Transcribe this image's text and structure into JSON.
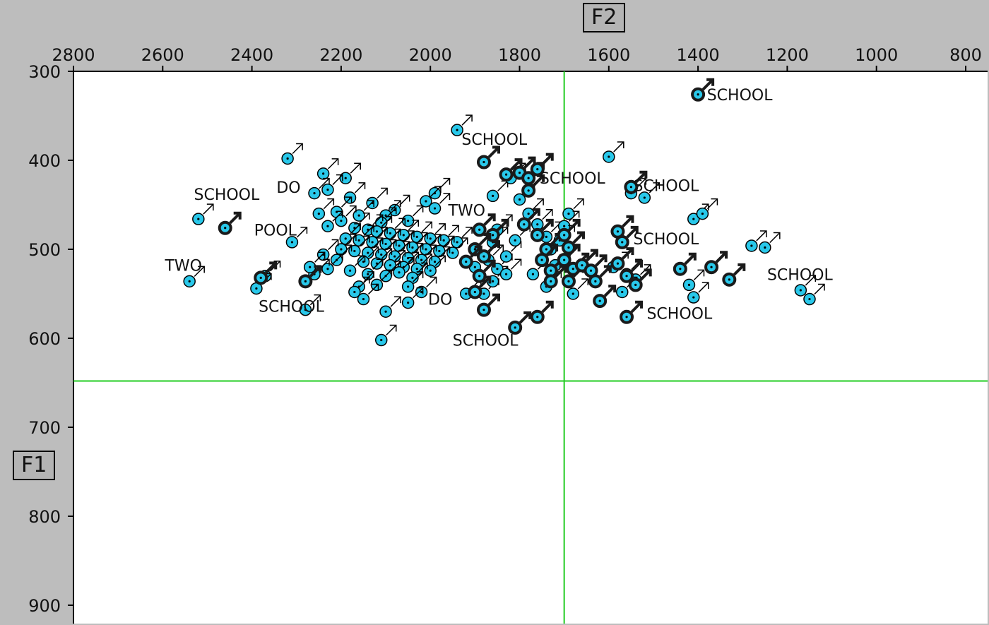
{
  "x_axis_label": "F2",
  "y_axis_label": "F1",
  "colors": {
    "background": "#bdbdbd",
    "plot_area": "#ffffff",
    "marker_light": "#29c8ea",
    "marker_dark": "#1a1a1a",
    "crosshair": "#22cc22"
  },
  "chart_data": {
    "type": "scatter",
    "x_axis": {
      "label": "F2",
      "ticks": [
        "2800",
        "2600",
        "2400",
        "2200",
        "2000",
        "1800",
        "1600",
        "1400",
        "1200",
        "1000",
        "800"
      ],
      "range": [
        2800,
        800
      ],
      "reversed": true,
      "position": "top"
    },
    "y_axis": {
      "label": "F1",
      "ticks": [
        "300",
        "400",
        "500",
        "600",
        "700",
        "800",
        "900"
      ],
      "range": [
        300,
        900
      ],
      "reversed": true,
      "position": "left"
    },
    "crosshair": {
      "x": 1700,
      "y": 648
    },
    "marker_symbol": "male-symbol",
    "series": [
      {
        "style": "light",
        "points": [
          [
            1940,
            366
          ],
          [
            2320,
            398
          ],
          [
            2240,
            415
          ],
          [
            2190,
            420
          ],
          [
            2230,
            433
          ],
          [
            2260,
            437
          ],
          [
            1860,
            440
          ],
          [
            1990,
            437
          ],
          [
            2180,
            442
          ],
          [
            2010,
            446
          ],
          [
            2130,
            448
          ],
          [
            1990,
            454
          ],
          [
            2210,
            458
          ],
          [
            2250,
            460
          ],
          [
            2160,
            462
          ],
          [
            2080,
            456
          ],
          [
            2100,
            462
          ],
          [
            2050,
            468
          ],
          [
            2110,
            470
          ],
          [
            2200,
            468
          ],
          [
            2230,
            474
          ],
          [
            2170,
            476
          ],
          [
            2140,
            478
          ],
          [
            2120,
            480
          ],
          [
            2090,
            482
          ],
          [
            2060,
            484
          ],
          [
            2030,
            486
          ],
          [
            2000,
            488
          ],
          [
            1970,
            490
          ],
          [
            1940,
            492
          ],
          [
            2190,
            488
          ],
          [
            2160,
            490
          ],
          [
            2130,
            492
          ],
          [
            2100,
            494
          ],
          [
            2070,
            496
          ],
          [
            2040,
            498
          ],
          [
            2010,
            500
          ],
          [
            1980,
            502
          ],
          [
            1950,
            504
          ],
          [
            2200,
            500
          ],
          [
            2170,
            502
          ],
          [
            2140,
            504
          ],
          [
            2110,
            506
          ],
          [
            2080,
            508
          ],
          [
            2050,
            510
          ],
          [
            2020,
            512
          ],
          [
            1990,
            514
          ],
          [
            2150,
            514
          ],
          [
            2120,
            516
          ],
          [
            2090,
            518
          ],
          [
            2060,
            520
          ],
          [
            2030,
            522
          ],
          [
            2000,
            524
          ],
          [
            2180,
            524
          ],
          [
            2210,
            512
          ],
          [
            2240,
            506
          ],
          [
            2230,
            522
          ],
          [
            2260,
            528
          ],
          [
            2270,
            520
          ],
          [
            2140,
            528
          ],
          [
            2100,
            530
          ],
          [
            2070,
            526
          ],
          [
            2040,
            532
          ],
          [
            2120,
            540
          ],
          [
            2160,
            542
          ],
          [
            2170,
            548
          ],
          [
            2150,
            556
          ],
          [
            2050,
            542
          ],
          [
            2020,
            548
          ],
          [
            2050,
            560
          ],
          [
            2100,
            570
          ],
          [
            2110,
            602
          ],
          [
            2280,
            568
          ],
          [
            2370,
            530
          ],
          [
            2390,
            544
          ],
          [
            2310,
            492
          ],
          [
            2520,
            466
          ],
          [
            2540,
            536
          ],
          [
            1920,
            550
          ],
          [
            1880,
            550
          ],
          [
            1860,
            536
          ],
          [
            1850,
            522
          ],
          [
            1830,
            508
          ],
          [
            1860,
            492
          ],
          [
            1850,
            478
          ],
          [
            1800,
            444
          ],
          [
            1780,
            460
          ],
          [
            1760,
            472
          ],
          [
            1740,
            486
          ],
          [
            1730,
            500
          ],
          [
            1770,
            528
          ],
          [
            1740,
            542
          ],
          [
            1690,
            460
          ],
          [
            1700,
            474
          ],
          [
            1710,
            490
          ],
          [
            1720,
            518
          ],
          [
            1680,
            550
          ],
          [
            1600,
            396
          ],
          [
            1590,
            520
          ],
          [
            1560,
            528
          ],
          [
            1540,
            534
          ],
          [
            1570,
            548
          ],
          [
            1550,
            437
          ],
          [
            1520,
            442
          ],
          [
            1410,
            466
          ],
          [
            1390,
            460
          ],
          [
            1420,
            540
          ],
          [
            1410,
            554
          ],
          [
            1280,
            496
          ],
          [
            1250,
            498
          ],
          [
            1170,
            546
          ],
          [
            1150,
            556
          ],
          [
            1820,
            420
          ],
          [
            1810,
            490
          ],
          [
            1830,
            528
          ],
          [
            1870,
            512
          ],
          [
            1900,
            520
          ]
        ]
      },
      {
        "style": "dark",
        "points": [
          [
            1400,
            326
          ],
          [
            1880,
            402
          ],
          [
            1800,
            414
          ],
          [
            1780,
            420
          ],
          [
            1780,
            434
          ],
          [
            1830,
            416
          ],
          [
            1760,
            410
          ],
          [
            1550,
            430
          ],
          [
            2460,
            476
          ],
          [
            2380,
            532
          ],
          [
            2280,
            536
          ],
          [
            1890,
            478
          ],
          [
            1860,
            484
          ],
          [
            1900,
            500
          ],
          [
            1880,
            508
          ],
          [
            1920,
            514
          ],
          [
            1890,
            530
          ],
          [
            1900,
            548
          ],
          [
            1880,
            568
          ],
          [
            1810,
            588
          ],
          [
            1760,
            576
          ],
          [
            1790,
            472
          ],
          [
            1760,
            484
          ],
          [
            1740,
            500
          ],
          [
            1750,
            512
          ],
          [
            1730,
            524
          ],
          [
            1730,
            536
          ],
          [
            1700,
            484
          ],
          [
            1690,
            498
          ],
          [
            1700,
            512
          ],
          [
            1680,
            522
          ],
          [
            1690,
            536
          ],
          [
            1660,
            518
          ],
          [
            1640,
            524
          ],
          [
            1630,
            536
          ],
          [
            1620,
            558
          ],
          [
            1580,
            480
          ],
          [
            1570,
            492
          ],
          [
            1580,
            516
          ],
          [
            1560,
            530
          ],
          [
            1540,
            540
          ],
          [
            1560,
            576
          ],
          [
            1440,
            522
          ],
          [
            1370,
            520
          ],
          [
            1330,
            534
          ]
        ]
      }
    ],
    "annotations": [
      {
        "text": "SCHOOL",
        "x": 1380,
        "y": 326
      },
      {
        "text": "SCHOOL",
        "x": 1930,
        "y": 376
      },
      {
        "text": "SCHOOL",
        "x": 1755,
        "y": 420
      },
      {
        "text": "SCHOOL",
        "x": 1545,
        "y": 428
      },
      {
        "text": "SCHOOL",
        "x": 2530,
        "y": 438
      },
      {
        "text": "DO",
        "x": 2345,
        "y": 430
      },
      {
        "text": "TWO",
        "x": 1960,
        "y": 456
      },
      {
        "text": "POOL",
        "x": 2395,
        "y": 478
      },
      {
        "text": "SCHOOL",
        "x": 1545,
        "y": 488
      },
      {
        "text": "TWO",
        "x": 2595,
        "y": 518
      },
      {
        "text": "SCHOOL",
        "x": 1245,
        "y": 528
      },
      {
        "text": "SCHOOL",
        "x": 2385,
        "y": 564
      },
      {
        "text": "DO",
        "x": 2005,
        "y": 556
      },
      {
        "text": "SCHOOL",
        "x": 1515,
        "y": 572
      },
      {
        "text": "SCHOOL",
        "x": 1950,
        "y": 602
      }
    ]
  }
}
